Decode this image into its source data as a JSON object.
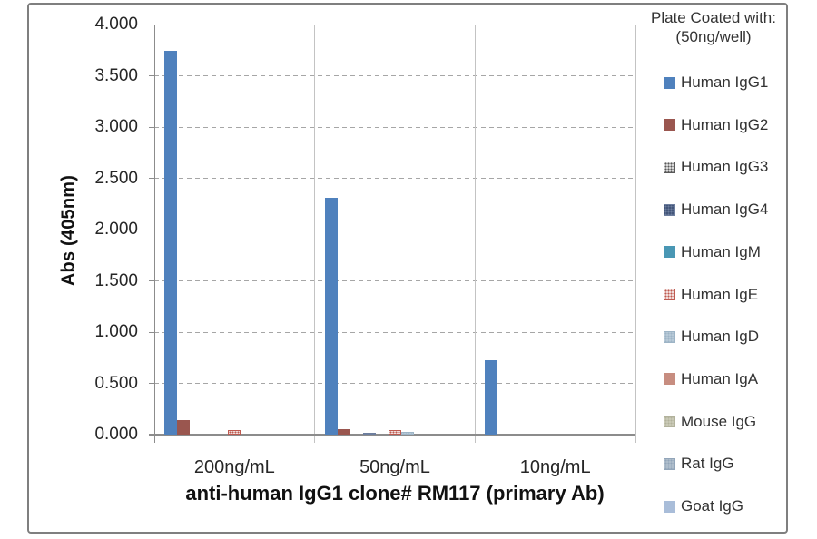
{
  "chart_data": {
    "type": "bar",
    "title": "anti-human IgG1 clone# RM117 (primary Ab)",
    "ylabel": "Abs (405nm)",
    "xlabel": "",
    "ylim": [
      0,
      4
    ],
    "ytick_step": 0.5,
    "ytick_decimals": 3,
    "grid": "horizontal-dashed",
    "legend_position": "right",
    "legend_title_line1": "Plate Coated with:",
    "legend_title_line2": "(50ng/well)",
    "categories": [
      "200ng/mL",
      "50ng/mL",
      "10ng/mL"
    ],
    "series": [
      {
        "name": "Human IgG1",
        "values": [
          3.74,
          2.31,
          0.73
        ],
        "fill": {
          "type": "solid",
          "color": "#4F81BD"
        }
      },
      {
        "name": "Human IgG2",
        "values": [
          0.14,
          0.05,
          0
        ],
        "fill": {
          "type": "solid",
          "color": "#9A564F"
        }
      },
      {
        "name": "Human IgG3",
        "values": [
          0,
          0,
          0
        ],
        "fill": {
          "type": "dots",
          "bg": "#D9D9D9",
          "dot": "#595959"
        }
      },
      {
        "name": "Human IgG4",
        "values": [
          0,
          0.015,
          0
        ],
        "fill": {
          "type": "dots",
          "bg": "#44567A",
          "dot": "#6D7E9E"
        }
      },
      {
        "name": "Human IgM",
        "values": [
          0,
          0,
          0
        ],
        "fill": {
          "type": "solid",
          "color": "#4997B4"
        }
      },
      {
        "name": "Human IgE",
        "values": [
          0.04,
          0.04,
          0
        ],
        "fill": {
          "type": "dots",
          "bg": "#F1DCDA",
          "dot": "#BE5A50"
        }
      },
      {
        "name": "Human IgD",
        "values": [
          0,
          0.03,
          0
        ],
        "fill": {
          "type": "dots",
          "bg": "#B7C9D7",
          "dot": "#9DB4C6"
        }
      },
      {
        "name": "Human IgA",
        "values": [
          0,
          0,
          0
        ],
        "fill": {
          "type": "solid",
          "color": "#C78D80"
        }
      },
      {
        "name": "Mouse IgG",
        "values": [
          0,
          0,
          0
        ],
        "fill": {
          "type": "dots",
          "bg": "#C9C9B6",
          "dot": "#B2B29C"
        }
      },
      {
        "name": "Rat IgG",
        "values": [
          0,
          0,
          0
        ],
        "fill": {
          "type": "dots",
          "bg": "#AEBDCB",
          "dot": "#92A5B9"
        }
      },
      {
        "name": "Goat IgG",
        "values": [
          0,
          0,
          0
        ],
        "fill": {
          "type": "solid",
          "color": "#A9BDD9"
        }
      }
    ],
    "style": {
      "grid_color": "#A6A6A6",
      "axis_color": "#8C8C8C",
      "separator_color": "#C3C3C3",
      "frame_border_color": "#7F7F7F",
      "tick_text_color": "#262626",
      "title_text_color": "#111111",
      "legend_text_color": "#333333"
    }
  }
}
